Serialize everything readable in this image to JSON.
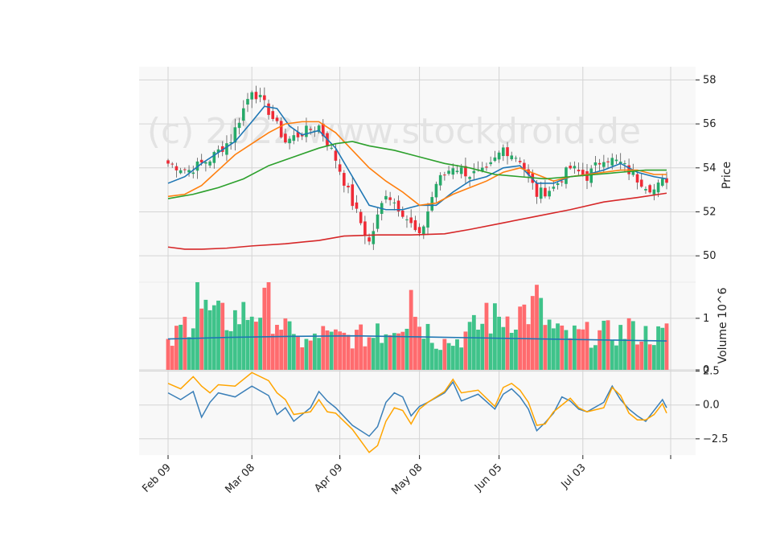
{
  "watermark": "(c) 2022 www.stockdroid.de",
  "colors": {
    "up": "#26a969",
    "down": "#ef2b36",
    "up_volume": "#3fc38a",
    "down_volume": "#ff6b6e",
    "ma_fast": "#1f77b4",
    "ma_mid": "#ff7f0e",
    "ma_slow": "#2ca02c",
    "ma_long": "#d62728",
    "volume_avg": "#1f77b4",
    "osc_line": "#3a7fb8",
    "osc_signal": "#ffa500",
    "panel_bg": "#f8f8f8",
    "grid": "#d4d4d4"
  },
  "chart_data": [
    {
      "type": "candlestick",
      "panel": "price",
      "ylabel": "Price",
      "ylim": [
        48.8,
        58.6
      ],
      "y_ticks": [
        50,
        52,
        54,
        56,
        58
      ],
      "x_ticks": [
        "Feb 09",
        "Mar 08",
        "Apr 09",
        "May 08",
        "Jun 05",
        "Jul 03"
      ],
      "x_tick_index": [
        0,
        20,
        41,
        60,
        79,
        99
      ],
      "n_bars": 120,
      "grid": true,
      "ohlc_anchors": [
        [
          0,
          54.2
        ],
        [
          5,
          53.9
        ],
        [
          10,
          54.4
        ],
        [
          15,
          55.3
        ],
        [
          20,
          57.6
        ],
        [
          24,
          56.6
        ],
        [
          28,
          55.2
        ],
        [
          32,
          55.6
        ],
        [
          36,
          55.9
        ],
        [
          40,
          54.4
        ],
        [
          44,
          52.4
        ],
        [
          48,
          50.6
        ],
        [
          52,
          52.9
        ],
        [
          56,
          52.0
        ],
        [
          60,
          50.8
        ],
        [
          64,
          53.3
        ],
        [
          68,
          54.1
        ],
        [
          72,
          53.7
        ],
        [
          76,
          53.8
        ],
        [
          80,
          54.9
        ],
        [
          84,
          54.4
        ],
        [
          88,
          52.8
        ],
        [
          92,
          53.1
        ],
        [
          96,
          54.0
        ],
        [
          100,
          53.6
        ],
        [
          104,
          54.5
        ],
        [
          108,
          54.2
        ],
        [
          112,
          53.5
        ],
        [
          116,
          53.0
        ],
        [
          119,
          53.5
        ]
      ],
      "moving_averages": [
        {
          "color_key": "ma_fast",
          "points": [
            [
              0,
              53.3
            ],
            [
              4,
              53.6
            ],
            [
              8,
              54.2
            ],
            [
              12,
              54.7
            ],
            [
              16,
              55.2
            ],
            [
              20,
              56.1
            ],
            [
              23,
              56.8
            ],
            [
              26,
              56.7
            ],
            [
              29,
              55.9
            ],
            [
              32,
              55.5
            ],
            [
              36,
              55.7
            ],
            [
              40,
              54.9
            ],
            [
              44,
              53.6
            ],
            [
              48,
              52.3
            ],
            [
              52,
              52.1
            ],
            [
              56,
              52.1
            ],
            [
              60,
              52.3
            ],
            [
              64,
              52.3
            ],
            [
              68,
              52.9
            ],
            [
              72,
              53.4
            ],
            [
              76,
              53.6
            ],
            [
              80,
              54.0
            ],
            [
              84,
              54.1
            ],
            [
              88,
              53.3
            ],
            [
              92,
              53.3
            ],
            [
              96,
              53.6
            ],
            [
              100,
              53.7
            ],
            [
              104,
              53.9
            ],
            [
              108,
              54.2
            ],
            [
              112,
              53.8
            ],
            [
              116,
              53.6
            ],
            [
              119,
              53.5
            ]
          ]
        },
        {
          "color_key": "ma_mid",
          "points": [
            [
              0,
              52.7
            ],
            [
              4,
              52.8
            ],
            [
              8,
              53.2
            ],
            [
              12,
              53.9
            ],
            [
              16,
              54.6
            ],
            [
              20,
              55.1
            ],
            [
              24,
              55.6
            ],
            [
              28,
              56.0
            ],
            [
              32,
              56.1
            ],
            [
              36,
              56.1
            ],
            [
              40,
              55.6
            ],
            [
              44,
              54.8
            ],
            [
              48,
              54.0
            ],
            [
              52,
              53.4
            ],
            [
              56,
              52.9
            ],
            [
              60,
              52.3
            ],
            [
              64,
              52.4
            ],
            [
              68,
              52.8
            ],
            [
              72,
              53.1
            ],
            [
              76,
              53.4
            ],
            [
              80,
              53.8
            ],
            [
              84,
              54.0
            ],
            [
              88,
              53.7
            ],
            [
              92,
              53.4
            ],
            [
              96,
              53.6
            ],
            [
              100,
              53.7
            ],
            [
              104,
              53.8
            ],
            [
              108,
              53.9
            ],
            [
              112,
              53.9
            ],
            [
              116,
              53.7
            ],
            [
              119,
              53.7
            ]
          ]
        },
        {
          "color_key": "ma_slow",
          "points": [
            [
              0,
              52.6
            ],
            [
              6,
              52.8
            ],
            [
              12,
              53.1
            ],
            [
              18,
              53.5
            ],
            [
              24,
              54.1
            ],
            [
              30,
              54.5
            ],
            [
              36,
              54.9
            ],
            [
              40,
              55.1
            ],
            [
              44,
              55.2
            ],
            [
              48,
              55.0
            ],
            [
              54,
              54.8
            ],
            [
              60,
              54.5
            ],
            [
              66,
              54.2
            ],
            [
              72,
              54.0
            ],
            [
              78,
              53.7
            ],
            [
              84,
              53.6
            ],
            [
              90,
              53.5
            ],
            [
              96,
              53.6
            ],
            [
              102,
              53.7
            ],
            [
              108,
              53.8
            ],
            [
              114,
              53.9
            ],
            [
              119,
              53.9
            ]
          ]
        },
        {
          "color_key": "ma_long",
          "points": [
            [
              0,
              50.4
            ],
            [
              4,
              50.3
            ],
            [
              8,
              50.3
            ],
            [
              14,
              50.35
            ],
            [
              20,
              50.45
            ],
            [
              28,
              50.55
            ],
            [
              36,
              50.7
            ],
            [
              42,
              50.9
            ],
            [
              50,
              50.95
            ],
            [
              58,
              50.95
            ],
            [
              66,
              51.0
            ],
            [
              72,
              51.2
            ],
            [
              80,
              51.5
            ],
            [
              88,
              51.8
            ],
            [
              96,
              52.1
            ],
            [
              104,
              52.45
            ],
            [
              112,
              52.65
            ],
            [
              119,
              52.85
            ]
          ]
        }
      ]
    },
    {
      "type": "bar",
      "panel": "volume",
      "ylabel": "Volume  10^6",
      "ylim": [
        0,
        1.7
      ],
      "y_ticks": [
        0,
        1
      ],
      "volume_anchors": [
        [
          0,
          0.6
        ],
        [
          7,
          1.7
        ],
        [
          13,
          1.3
        ],
        [
          24,
          1.7
        ],
        [
          31,
          0.65
        ],
        [
          37,
          0.85
        ],
        [
          50,
          0.9
        ],
        [
          58,
          1.55
        ],
        [
          66,
          0.6
        ],
        [
          76,
          1.3
        ],
        [
          88,
          1.65
        ],
        [
          93,
          0.9
        ],
        [
          110,
          1.0
        ],
        [
          119,
          0.9
        ]
      ],
      "average_level": [
        0.6,
        0.63,
        0.65,
        0.66,
        0.64,
        0.62,
        0.6,
        0.58,
        0.56
      ]
    },
    {
      "type": "line",
      "panel": "oscillator",
      "ylim": [
        -3.7,
        2.6
      ],
      "y_ticks": [
        2.5,
        0.0,
        -2.5
      ],
      "y_tick_labels": [
        "2.5",
        "0.0",
        "−2.5"
      ],
      "series": [
        {
          "color_key": "osc_line",
          "points": [
            [
              0,
              0.9
            ],
            [
              3,
              0.4
            ],
            [
              6,
              1.0
            ],
            [
              8,
              -0.9
            ],
            [
              10,
              0.2
            ],
            [
              12,
              0.9
            ],
            [
              16,
              0.6
            ],
            [
              20,
              1.4
            ],
            [
              24,
              0.7
            ],
            [
              26,
              -0.7
            ],
            [
              28,
              -0.2
            ],
            [
              30,
              -1.2
            ],
            [
              34,
              -0.2
            ],
            [
              36,
              1.0
            ],
            [
              38,
              0.3
            ],
            [
              40,
              -0.2
            ],
            [
              44,
              -1.5
            ],
            [
              48,
              -2.3
            ],
            [
              50,
              -1.6
            ],
            [
              52,
              0.2
            ],
            [
              54,
              0.9
            ],
            [
              56,
              0.6
            ],
            [
              58,
              -0.8
            ],
            [
              60,
              -0.1
            ],
            [
              62,
              0.2
            ],
            [
              66,
              0.9
            ],
            [
              68,
              1.7
            ],
            [
              70,
              0.3
            ],
            [
              74,
              0.8
            ],
            [
              78,
              -0.3
            ],
            [
              80,
              0.8
            ],
            [
              82,
              1.2
            ],
            [
              84,
              0.6
            ],
            [
              86,
              -0.3
            ],
            [
              88,
              -1.9
            ],
            [
              90,
              -1.3
            ],
            [
              92,
              -0.6
            ],
            [
              94,
              0.6
            ],
            [
              96,
              0.3
            ],
            [
              98,
              -0.3
            ],
            [
              100,
              -0.5
            ],
            [
              104,
              0.2
            ],
            [
              106,
              1.4
            ],
            [
              108,
              0.4
            ],
            [
              110,
              -0.3
            ],
            [
              112,
              -0.8
            ],
            [
              114,
              -1.2
            ],
            [
              116,
              -0.4
            ],
            [
              118,
              0.4
            ],
            [
              119,
              -0.2
            ]
          ]
        },
        {
          "color_key": "osc_signal",
          "points": [
            [
              0,
              1.6
            ],
            [
              3,
              1.2
            ],
            [
              6,
              2.1
            ],
            [
              8,
              1.4
            ],
            [
              10,
              0.9
            ],
            [
              12,
              1.5
            ],
            [
              16,
              1.4
            ],
            [
              20,
              2.4
            ],
            [
              24,
              1.8
            ],
            [
              26,
              0.9
            ],
            [
              28,
              0.4
            ],
            [
              30,
              -0.7
            ],
            [
              34,
              -0.5
            ],
            [
              36,
              0.4
            ],
            [
              38,
              -0.5
            ],
            [
              40,
              -0.6
            ],
            [
              44,
              -1.8
            ],
            [
              48,
              -3.5
            ],
            [
              50,
              -3.0
            ],
            [
              52,
              -1.2
            ],
            [
              54,
              -0.2
            ],
            [
              56,
              -0.4
            ],
            [
              58,
              -1.4
            ],
            [
              60,
              -0.3
            ],
            [
              62,
              0.2
            ],
            [
              66,
              1.0
            ],
            [
              68,
              1.9
            ],
            [
              70,
              0.9
            ],
            [
              74,
              1.1
            ],
            [
              78,
              -0.1
            ],
            [
              80,
              1.3
            ],
            [
              82,
              1.6
            ],
            [
              84,
              1.1
            ],
            [
              86,
              0.2
            ],
            [
              88,
              -1.5
            ],
            [
              90,
              -1.4
            ],
            [
              92,
              -0.5
            ],
            [
              94,
              0.0
            ],
            [
              96,
              0.5
            ],
            [
              98,
              -0.2
            ],
            [
              100,
              -0.5
            ],
            [
              104,
              -0.2
            ],
            [
              106,
              1.3
            ],
            [
              108,
              0.7
            ],
            [
              110,
              -0.6
            ],
            [
              112,
              -1.1
            ],
            [
              114,
              -1.1
            ],
            [
              116,
              -0.7
            ],
            [
              118,
              0.1
            ],
            [
              119,
              -0.6
            ]
          ]
        }
      ]
    }
  ]
}
